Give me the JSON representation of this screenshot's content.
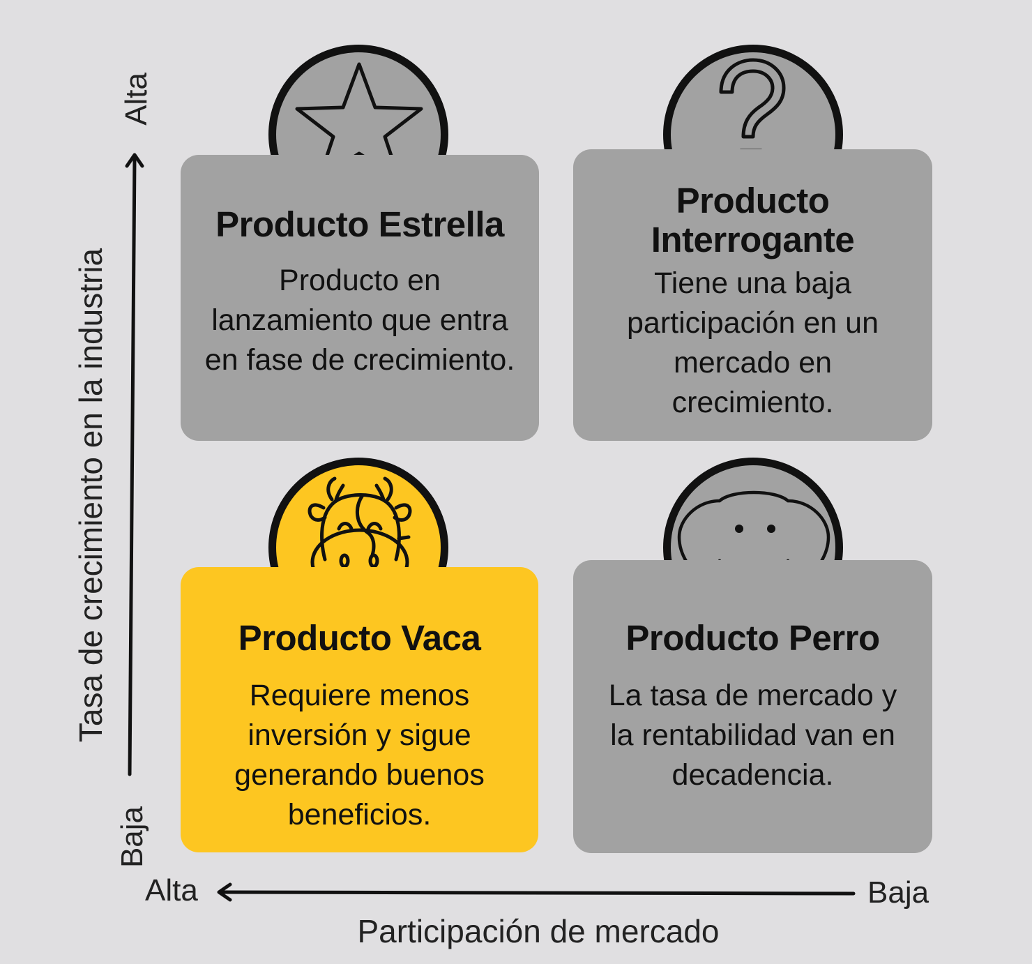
{
  "axes": {
    "y_label": "Tasa de crecimiento en la industria",
    "y_high": "Alta",
    "y_low": "Baja",
    "x_label": "Participación de mercado",
    "x_high": "Alta",
    "x_low": "Baja"
  },
  "quadrants": {
    "star": {
      "title": "Producto Estrella",
      "description": "Producto en lanzamiento que entra en fase de crecimiento.",
      "icon": "star-icon",
      "color": "#a2a2a2"
    },
    "question": {
      "title_line1": "Producto",
      "title_line2": "Interrogante",
      "description": "Tiene una baja participación en un mercado en crecimiento.",
      "icon": "question-mark-icon",
      "color": "#a2a2a2"
    },
    "cow": {
      "title": "Producto Vaca",
      "description": "Requiere menos inversión y sigue generando buenos beneficios.",
      "icon": "cow-icon",
      "color": "#fdc621"
    },
    "dog": {
      "title": "Producto Perro",
      "description": "La tasa de mercado y la rentabilidad van en decadencia.",
      "icon": "dog-icon",
      "color": "#a2a2a2"
    }
  },
  "colors": {
    "background": "#e0dfe1",
    "gray_card": "#a2a2a2",
    "highlight": "#fdc621",
    "outline": "#111111"
  }
}
